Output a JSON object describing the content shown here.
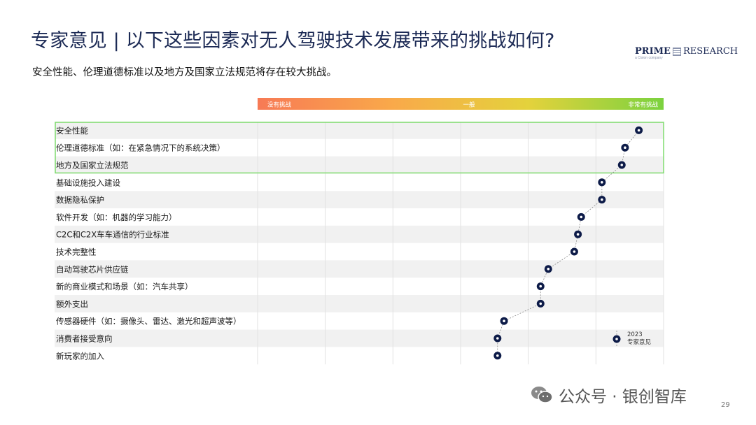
{
  "page": {
    "title": "专家意见 | 以下这些因素对无人驾驶技术发展带来的挑战如何?",
    "subtitle": "安全性能、伦理道德标准以及地方及国家立法规范将存在较大挑战。",
    "logo": {
      "prime": "PRIME",
      "research": "RESEARCH",
      "tagline": "a Cision company"
    },
    "page_number": "29",
    "watermark": "公众号 · 银创智库"
  },
  "colors": {
    "gradient": [
      "#f77a55",
      "#f9a94a",
      "#e4d23c",
      "#7bd23f"
    ],
    "marker": "#0d1b48",
    "highlight": "#7fdc6e",
    "row_alt": "#f1f1f1"
  },
  "chart_data": {
    "type": "scatter",
    "scale_labels": [
      "没有挑战",
      "一般",
      "非常有挑战"
    ],
    "xlim": [
      0,
      1
    ],
    "categories": [
      "安全性能",
      "伦理道德标准（如：在紧急情况下的系统决策）",
      "地方及国家立法规范",
      "基础设施投入建设",
      "数据隐私保护",
      "软件开发（如：机器的学习能力）",
      "C2C和C2X车车通信的行业标准",
      "技术完整性",
      "自动驾驶芯片供应链",
      "新的商业模式和场景（如：汽车共享）",
      "额外支出",
      "传感器硬件（如：摄像头、雷达、激光和超声波等）",
      "消费者接受意向",
      "新玩家的加入"
    ],
    "series": [
      {
        "name": "2023 专家意见",
        "legend_lines": [
          "2023",
          "专家意见"
        ],
        "values": [
          0.939,
          0.905,
          0.897,
          0.848,
          0.848,
          0.797,
          0.789,
          0.78,
          0.716,
          0.697,
          0.697,
          0.607,
          0.591,
          0.591
        ]
      }
    ],
    "highlighted_rows": [
      0,
      1,
      2
    ],
    "grid": true
  }
}
